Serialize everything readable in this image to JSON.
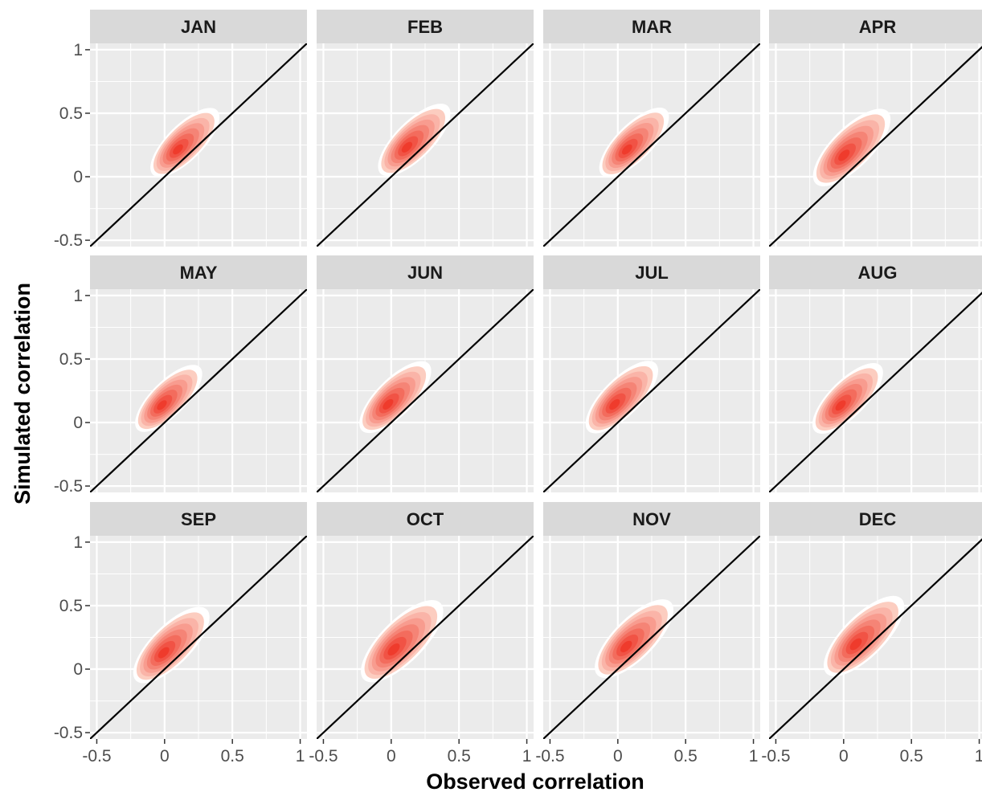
{
  "chart_data": {
    "type": "density-facets",
    "xlabel": "Observed correlation",
    "ylabel": "Simulated correlation",
    "xlim": [
      -0.55,
      1.05
    ],
    "ylim": [
      -0.55,
      1.05
    ],
    "x_ticks": [
      -0.5,
      0,
      0.5,
      1
    ],
    "x_tick_labels": [
      "-0.5",
      "0",
      "0.5",
      "1"
    ],
    "y_ticks": [
      -0.5,
      0,
      0.5,
      1
    ],
    "y_tick_labels": [
      "-0.5",
      "0",
      "0.5",
      "1"
    ],
    "reference_line": "y = x",
    "grid": true,
    "colors": {
      "panel_background": "#ebebeb",
      "strip_background": "#d9d9d9",
      "grid": "#ffffff",
      "reference_line": "#000000",
      "density_low": "#fee5d9",
      "density_high": "#ef3b2c"
    },
    "panels": [
      {
        "month": "JAN",
        "center_x": 0.15,
        "center_y": 0.27,
        "extent_x": [
          -0.05,
          0.45
        ],
        "extent_y": [
          0.08,
          0.6
        ]
      },
      {
        "month": "FEB",
        "center_x": 0.17,
        "center_y": 0.29,
        "extent_x": [
          -0.02,
          0.5
        ],
        "extent_y": [
          0.08,
          0.63
        ]
      },
      {
        "month": "MAR",
        "center_x": 0.12,
        "center_y": 0.27,
        "extent_x": [
          -0.03,
          0.45
        ],
        "extent_y": [
          0.08,
          0.63
        ]
      },
      {
        "month": "APR",
        "center_x": 0.06,
        "center_y": 0.23,
        "extent_x": [
          -0.12,
          0.47
        ],
        "extent_y": [
          0.05,
          0.6
        ]
      },
      {
        "month": "MAY",
        "center_x": 0.03,
        "center_y": 0.19,
        "extent_x": [
          -0.12,
          0.37
        ],
        "extent_y": [
          0.02,
          0.52
        ]
      },
      {
        "month": "JUN",
        "center_x": 0.03,
        "center_y": 0.2,
        "extent_x": [
          -0.15,
          0.38
        ],
        "extent_y": [
          0.0,
          0.53
        ]
      },
      {
        "month": "JUL",
        "center_x": 0.03,
        "center_y": 0.2,
        "extent_x": [
          -0.15,
          0.38
        ],
        "extent_y": [
          0.02,
          0.56
        ]
      },
      {
        "month": "AUG",
        "center_x": 0.03,
        "center_y": 0.19,
        "extent_x": [
          -0.15,
          0.38
        ],
        "extent_y": [
          0.02,
          0.53
        ]
      },
      {
        "month": "SEP",
        "center_x": 0.05,
        "center_y": 0.19,
        "extent_x": [
          -0.12,
          0.47
        ],
        "extent_y": [
          0.05,
          0.58
        ]
      },
      {
        "month": "OCT",
        "center_x": 0.08,
        "center_y": 0.22,
        "extent_x": [
          -0.08,
          0.55
        ],
        "extent_y": [
          0.05,
          0.63
        ]
      },
      {
        "month": "NOV",
        "center_x": 0.12,
        "center_y": 0.24,
        "extent_x": [
          -0.05,
          0.53
        ],
        "extent_y": [
          0.05,
          0.63
        ]
      },
      {
        "month": "DEC",
        "center_x": 0.15,
        "center_y": 0.26,
        "extent_x": [
          -0.05,
          0.58
        ],
        "extent_y": [
          0.1,
          0.65
        ]
      }
    ]
  }
}
